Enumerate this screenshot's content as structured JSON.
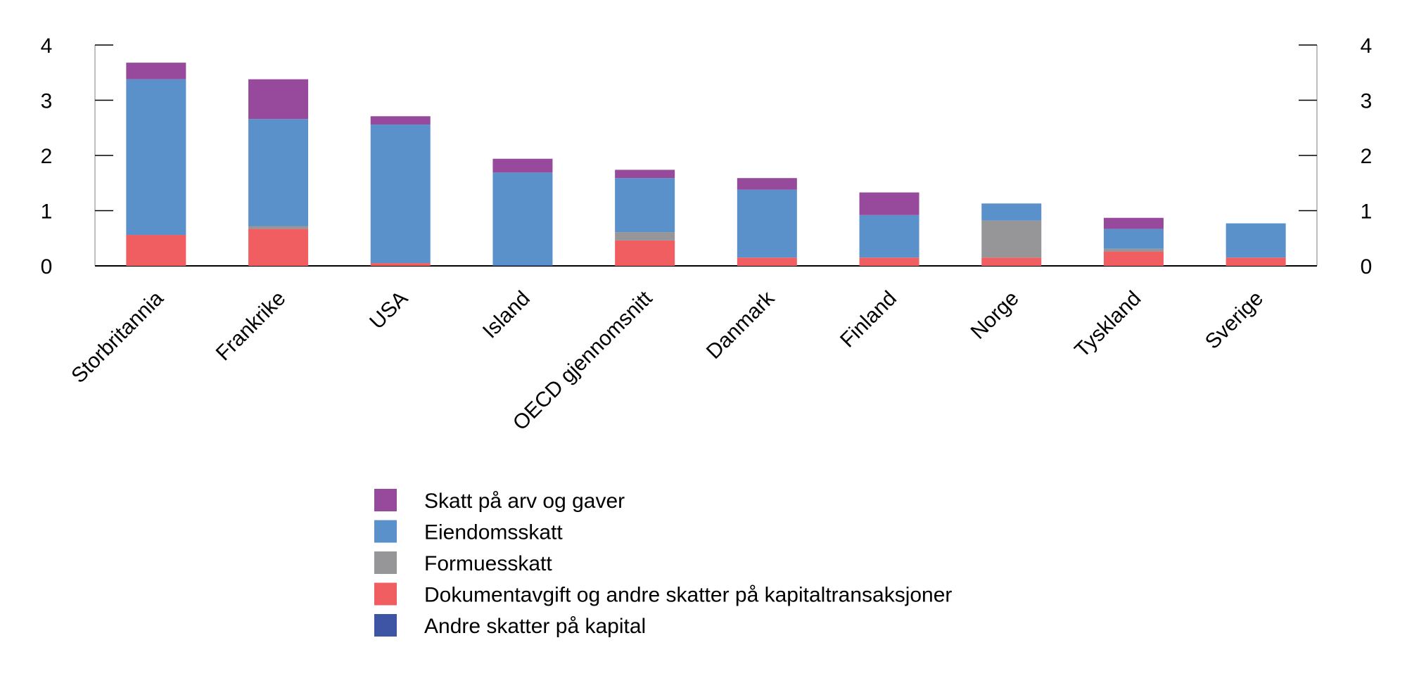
{
  "chart_data": {
    "type": "bar",
    "stacked": true,
    "title": "",
    "xlabel": "",
    "ylabel": "",
    "ylim": [
      0,
      4
    ],
    "yticks": [
      "0",
      "1",
      "2",
      "3",
      "4"
    ],
    "grid": false,
    "secondary_axis_mirrored": true,
    "legend_position": "bottom",
    "categories": [
      "Storbritannia",
      "Frankrike",
      "USA",
      "Island",
      "OECD gjennomsnitt",
      "Danmark",
      "Finland",
      "Norge",
      "Tyskland",
      "Sverige"
    ],
    "series": [
      {
        "name": "Andre skatter på kapital",
        "color": "#3e55a5",
        "values": [
          0,
          0,
          0,
          0.01,
          0,
          0,
          0,
          0,
          0,
          0
        ]
      },
      {
        "name": "Dokumentavgift og andre skatter på kapitaltransaksjoner",
        "color": "#f15e61",
        "values": [
          0.56,
          0.67,
          0.05,
          0,
          0.46,
          0.15,
          0.15,
          0.15,
          0.26,
          0.15
        ]
      },
      {
        "name": "Formuesskatt",
        "color": "#969598",
        "values": [
          0,
          0.05,
          0,
          0,
          0.15,
          0,
          0,
          0.67,
          0.05,
          0
        ]
      },
      {
        "name": "Eiendomsskatt",
        "color": "#5b91cb",
        "values": [
          2.82,
          1.94,
          2.51,
          1.68,
          0.98,
          1.23,
          0.77,
          0.31,
          0.36,
          0.62
        ]
      },
      {
        "name": "Skatt på arv og gaver",
        "color": "#974a9b",
        "values": [
          0.3,
          0.72,
          0.15,
          0.25,
          0.15,
          0.21,
          0.41,
          0,
          0.2,
          0
        ]
      }
    ],
    "legend_order": [
      "Skatt på arv og gaver",
      "Eiendomsskatt",
      "Formuesskatt",
      "Dokumentavgift og andre skatter på kapitaltransaksjoner",
      "Andre skatter på kapital"
    ]
  }
}
